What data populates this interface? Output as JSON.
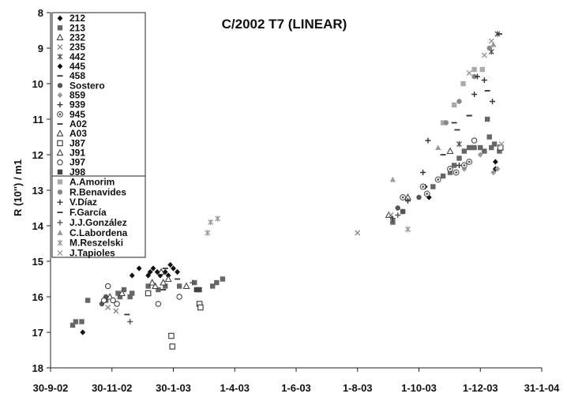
{
  "chart_data": {
    "type": "scatter",
    "title": "C/2002 T7 (LINEAR)",
    "xlabel": "",
    "ylabel": "R (10'') / m1",
    "x_type": "date",
    "xlim": [
      "2002-09-30",
      "2004-01-31"
    ],
    "ylim": [
      8,
      18
    ],
    "y_inverted": true,
    "x_ticks": [
      {
        "date": "2002-09-30",
        "label": "30-9-02"
      },
      {
        "date": "2002-11-30",
        "label": "30-11-02"
      },
      {
        "date": "2003-01-30",
        "label": "30-1-03"
      },
      {
        "date": "2003-04-01",
        "label": "1-4-03"
      },
      {
        "date": "2003-06-01",
        "label": "1-6-03"
      },
      {
        "date": "2003-08-01",
        "label": "1-8-03"
      },
      {
        "date": "2003-10-01",
        "label": "1-10-03"
      },
      {
        "date": "2003-12-01",
        "label": "1-12-03"
      },
      {
        "date": "2004-01-31",
        "label": "31-1-04"
      }
    ],
    "y_ticks": [
      8,
      9,
      10,
      11,
      12,
      13,
      14,
      15,
      16,
      17,
      18
    ],
    "grid": false,
    "legend_position": "top-left",
    "series": [
      {
        "name": "212",
        "marker": "diamond",
        "color": "#111111",
        "points": [
          [
            "2003-01-05",
            15.4
          ],
          [
            "2003-01-07",
            15.3
          ],
          [
            "2003-01-10",
            15.2
          ],
          [
            "2003-01-14",
            15.3
          ],
          [
            "2003-01-17",
            15.4
          ],
          [
            "2003-01-22",
            15.3
          ],
          [
            "2003-01-25",
            15.4
          ],
          [
            "2003-01-27",
            15.1
          ],
          [
            "2003-01-30",
            15.2
          ],
          [
            "2003-02-03",
            15.3
          ],
          [
            "2003-12-16",
            12.2
          ],
          [
            "2003-12-16",
            12.4
          ]
        ]
      },
      {
        "name": "213",
        "marker": "square",
        "color": "#666666",
        "points": [
          [
            "2002-10-22",
            16.8
          ],
          [
            "2002-10-25",
            16.7
          ],
          [
            "2002-10-31",
            16.7
          ],
          [
            "2002-11-06",
            16.1
          ],
          [
            "2002-11-24",
            16.1
          ],
          [
            "2002-12-06",
            15.9
          ],
          [
            "2002-12-08",
            16.0
          ],
          [
            "2002-12-12",
            15.8
          ],
          [
            "2002-12-18",
            16.0
          ],
          [
            "2002-12-20",
            15.9
          ],
          [
            "2003-01-05",
            15.7
          ],
          [
            "2003-01-15",
            15.8
          ],
          [
            "2003-01-22",
            15.7
          ],
          [
            "2003-02-05",
            15.7
          ],
          [
            "2003-02-20",
            15.6
          ],
          [
            "2003-02-25",
            15.8
          ],
          [
            "2003-03-10",
            15.7
          ],
          [
            "2003-03-14",
            15.6
          ],
          [
            "2003-03-20",
            15.5
          ],
          [
            "2003-09-05",
            13.9
          ],
          [
            "2003-09-15",
            13.6
          ],
          [
            "2003-10-15",
            12.9
          ],
          [
            "2003-10-25",
            12.6
          ],
          [
            "2003-11-01",
            12.5
          ],
          [
            "2003-11-05",
            12.3
          ],
          [
            "2003-11-10",
            12.1
          ],
          [
            "2003-11-15",
            11.9
          ],
          [
            "2003-11-20",
            11.8
          ],
          [
            "2003-11-25",
            11.8
          ],
          [
            "2003-12-01",
            11.8
          ],
          [
            "2003-12-05",
            11.9
          ],
          [
            "2003-12-08",
            11.0
          ],
          [
            "2003-12-10",
            11.5
          ],
          [
            "2003-12-12",
            11.8
          ],
          [
            "2003-12-15",
            11.7
          ],
          [
            "2003-12-20",
            11.9
          ]
        ]
      },
      {
        "name": "232",
        "marker": "triangle-open",
        "color": "#444444",
        "points": [
          [
            "2003-01-12",
            15.7
          ],
          [
            "2003-01-20",
            15.6
          ],
          [
            "2003-09-01",
            13.7
          ],
          [
            "2003-09-20",
            13.2
          ]
        ]
      },
      {
        "name": "235",
        "marker": "x",
        "color": "#888888",
        "points": [
          [
            "2002-11-26",
            16.3
          ],
          [
            "2002-12-04",
            16.4
          ],
          [
            "2003-08-01",
            14.2
          ],
          [
            "2003-09-03",
            13.7
          ]
        ]
      },
      {
        "name": "442",
        "marker": "asterisk",
        "color": "#555555",
        "points": [
          [
            "2003-11-10",
            11.7
          ],
          [
            "2003-12-12",
            9.1
          ],
          [
            "2003-12-18",
            8.6
          ]
        ]
      },
      {
        "name": "445",
        "marker": "diamond",
        "color": "#111111",
        "points": [
          [
            "2002-11-01",
            17.0
          ],
          [
            "2002-12-20",
            15.4
          ],
          [
            "2002-12-27",
            15.2
          ],
          [
            "2003-10-07",
            12.9
          ],
          [
            "2003-10-11",
            13.2
          ]
        ]
      },
      {
        "name": "458",
        "marker": "dash",
        "color": "#333333",
        "points": [
          [
            "2003-01-20",
            15.8
          ],
          [
            "2003-02-03",
            15.5
          ]
        ]
      },
      {
        "name": "Sostero",
        "marker": "circle",
        "color": "#555555",
        "points": [
          [
            "2002-11-20",
            16.2
          ],
          [
            "2002-11-24",
            16.0
          ],
          [
            "2003-09-10",
            13.5
          ],
          [
            "2003-09-15",
            13.6
          ],
          [
            "2003-10-01",
            13.2
          ]
        ]
      },
      {
        "name": "859",
        "marker": "diamond",
        "color": "#999999",
        "points": [
          [
            "2003-11-15",
            12.4
          ],
          [
            "2003-12-01",
            12.0
          ],
          [
            "2003-12-14",
            12.5
          ],
          [
            "2003-12-18",
            12.4
          ]
        ]
      },
      {
        "name": "939",
        "marker": "plus",
        "color": "#333333",
        "points": [
          [
            "2003-10-05",
            12.5
          ],
          [
            "2003-11-10",
            12.3
          ],
          [
            "2003-11-25",
            10.3
          ],
          [
            "2003-12-05",
            9.9
          ],
          [
            "2003-12-13",
            10.5
          ]
        ]
      },
      {
        "name": "945",
        "marker": "circle-dot",
        "color": "#555555",
        "points": [
          [
            "2003-09-15",
            13.2
          ],
          [
            "2003-10-05",
            12.9
          ],
          [
            "2003-10-09",
            13.1
          ],
          [
            "2003-10-20",
            12.7
          ],
          [
            "2003-11-01",
            12.4
          ],
          [
            "2003-11-07",
            12.5
          ],
          [
            "2003-11-15",
            12.3
          ],
          [
            "2003-11-20",
            12.2
          ]
        ]
      },
      {
        "name": "A02",
        "marker": "dash",
        "color": "#333333",
        "points": [
          [
            "2003-01-22",
            15.2
          ],
          [
            "2003-11-05",
            11.1
          ],
          [
            "2003-11-20",
            10.9
          ],
          [
            "2003-12-08",
            10.2
          ],
          [
            "2003-12-20",
            8.6
          ]
        ]
      },
      {
        "name": "A03",
        "marker": "triangle-open",
        "color": "#444444",
        "points": [
          [
            "2003-01-18",
            15.3
          ],
          [
            "2003-01-25",
            15.5
          ]
        ]
      },
      {
        "name": "J87",
        "marker": "square-open",
        "color": "#444444",
        "points": [
          [
            "2003-01-05",
            15.9
          ],
          [
            "2003-01-28",
            17.1
          ],
          [
            "2003-01-29",
            17.4
          ],
          [
            "2003-02-25",
            16.2
          ],
          [
            "2003-02-26",
            16.3
          ],
          [
            "2003-12-21",
            11.8
          ]
        ]
      },
      {
        "name": "J91",
        "marker": "triangle-open",
        "color": "#444444",
        "points": [
          [
            "2002-11-28",
            16.0
          ],
          [
            "2002-12-10",
            15.9
          ],
          [
            "2003-01-09",
            15.6
          ],
          [
            "2003-02-12",
            15.7
          ],
          [
            "2003-11-01",
            11.9
          ]
        ]
      },
      {
        "name": "J97",
        "marker": "circle-open",
        "color": "#444444",
        "points": [
          [
            "2002-11-22",
            16.1
          ],
          [
            "2002-11-26",
            15.7
          ],
          [
            "2002-12-01",
            16.1
          ],
          [
            "2002-12-05",
            16.2
          ],
          [
            "2003-01-15",
            16.2
          ],
          [
            "2003-02-05",
            16.0
          ],
          [
            "2003-11-25",
            11.6
          ]
        ]
      },
      {
        "name": "J98",
        "marker": "square",
        "color": "#444444",
        "points": [
          [
            "2003-02-22",
            15.8
          ],
          [
            "2003-02-24",
            15.8
          ]
        ]
      },
      {
        "name": "A.Amorim",
        "marker": "square",
        "color": "#aaaaaa",
        "points": [
          [
            "2003-10-25",
            11.1
          ],
          [
            "2003-11-05",
            10.6
          ],
          [
            "2003-11-14",
            10.0
          ],
          [
            "2003-11-25",
            9.6
          ],
          [
            "2003-12-03",
            9.6
          ]
        ]
      },
      {
        "name": "R.Benavides",
        "marker": "circle",
        "color": "#888888",
        "points": [
          [
            "2003-10-28",
            11.1
          ],
          [
            "2003-11-10",
            10.5
          ],
          [
            "2003-11-25",
            9.8
          ],
          [
            "2003-12-10",
            9.0
          ]
        ]
      },
      {
        "name": "V.Díaz",
        "marker": "plus",
        "color": "#333333",
        "points": [
          [
            "2003-09-05",
            13.8
          ],
          [
            "2003-09-20",
            13.3
          ],
          [
            "2003-10-10",
            11.6
          ],
          [
            "2003-11-28",
            9.8
          ]
        ]
      },
      {
        "name": "F.García",
        "marker": "dash",
        "color": "#333333",
        "points": [
          [
            "2002-12-15",
            16.5
          ],
          [
            "2003-10-25",
            12.0
          ],
          [
            "2003-11-08",
            11.3
          ],
          [
            "2003-11-20",
            10.9
          ]
        ]
      },
      {
        "name": "J.J.González",
        "marker": "plus",
        "color": "#555555",
        "points": [
          [
            "2002-12-18",
            16.7
          ],
          [
            "2003-02-18",
            15.6
          ],
          [
            "2003-09-10",
            13.7
          ]
        ]
      },
      {
        "name": "C.Labordena",
        "marker": "triangle",
        "color": "#999999",
        "points": [
          [
            "2003-09-05",
            12.7
          ],
          [
            "2003-10-20",
            11.8
          ],
          [
            "2003-12-14",
            8.9
          ]
        ]
      },
      {
        "name": "M.Reszelski",
        "marker": "asterisk",
        "color": "#999999",
        "points": [
          [
            "2003-03-05",
            14.2
          ],
          [
            "2003-03-08",
            13.9
          ],
          [
            "2003-03-15",
            13.8
          ],
          [
            "2003-09-20",
            14.1
          ]
        ]
      },
      {
        "name": "J.Tapioles",
        "marker": "x",
        "color": "#999999",
        "points": [
          [
            "2003-11-20",
            9.7
          ],
          [
            "2003-12-05",
            9.2
          ],
          [
            "2003-12-12",
            8.8
          ],
          [
            "2003-12-22",
            11.7
          ]
        ]
      }
    ]
  }
}
